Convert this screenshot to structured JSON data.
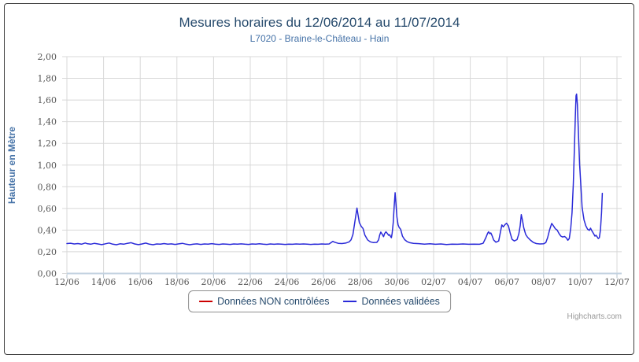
{
  "chart": {
    "credits": "Highcharts.com"
  },
  "colors": {
    "title": "#274b6d",
    "subtitle": "#4572a7",
    "axis_title": "#4572a7",
    "tick_label": "#555555",
    "grid": "#d8d8d8",
    "axis_line": "#c3d2e0",
    "tick_mark": "#b3bfca",
    "frame_border": "#3f3f3f",
    "credits": "#999999",
    "series_red": "#cc0000",
    "series_blue": "#2a2ad8"
  },
  "legend": {
    "items": [
      {
        "label": "Données NON contrôlées",
        "color": "#cc0000"
      },
      {
        "label": "Données validées",
        "color": "#2a2ad8"
      }
    ]
  },
  "chart_data": {
    "type": "line",
    "title": "Mesures horaires du 12/06/2014 au 11/07/2014",
    "subtitle": "L7020 - Braine-le-Château - Hain",
    "xlabel": "",
    "ylabel": "Hauteur en Mètre",
    "ylim": [
      0,
      2
    ],
    "y_tick_step": 0.2,
    "y_tick_labels": [
      "0,00",
      "0,20",
      "0,40",
      "0,60",
      "0,80",
      "1,00",
      "1,20",
      "1,40",
      "1,60",
      "1,80",
      "2,00"
    ],
    "x_tick_labels": [
      "12/06",
      "14/06",
      "16/06",
      "18/06",
      "20/06",
      "22/06",
      "24/06",
      "26/06",
      "28/06",
      "30/06",
      "02/07",
      "04/07",
      "06/07",
      "08/07",
      "10/07",
      "12/07"
    ],
    "x_unit": "days since 12/06/2014 00:00",
    "x_range_days": [
      0,
      30
    ],
    "grid": true,
    "legend_position": "bottom",
    "series": [
      {
        "name": "Données NON contrôlées",
        "color": "#cc0000",
        "points": []
      },
      {
        "name": "Données validées",
        "color": "#2a2ad8",
        "points": [
          [
            0.0,
            0.276
          ],
          [
            0.2,
            0.279
          ],
          [
            0.4,
            0.272
          ],
          [
            0.6,
            0.276
          ],
          [
            0.8,
            0.27
          ],
          [
            1.0,
            0.281
          ],
          [
            1.1,
            0.275
          ],
          [
            1.3,
            0.27
          ],
          [
            1.5,
            0.278
          ],
          [
            1.7,
            0.272
          ],
          [
            1.9,
            0.266
          ],
          [
            2.1,
            0.274
          ],
          [
            2.3,
            0.281
          ],
          [
            2.5,
            0.27
          ],
          [
            2.7,
            0.265
          ],
          [
            2.9,
            0.274
          ],
          [
            3.1,
            0.27
          ],
          [
            3.3,
            0.278
          ],
          [
            3.5,
            0.284
          ],
          [
            3.7,
            0.272
          ],
          [
            3.9,
            0.266
          ],
          [
            4.1,
            0.272
          ],
          [
            4.3,
            0.28
          ],
          [
            4.5,
            0.27
          ],
          [
            4.7,
            0.265
          ],
          [
            4.9,
            0.272
          ],
          [
            5.1,
            0.27
          ],
          [
            5.3,
            0.276
          ],
          [
            5.5,
            0.27
          ],
          [
            5.7,
            0.273
          ],
          [
            5.9,
            0.268
          ],
          [
            6.1,
            0.273
          ],
          [
            6.3,
            0.278
          ],
          [
            6.5,
            0.27
          ],
          [
            6.7,
            0.265
          ],
          [
            6.9,
            0.271
          ],
          [
            7.1,
            0.273
          ],
          [
            7.3,
            0.268
          ],
          [
            7.5,
            0.272
          ],
          [
            7.7,
            0.27
          ],
          [
            7.9,
            0.275
          ],
          [
            8.1,
            0.27
          ],
          [
            8.3,
            0.268
          ],
          [
            8.5,
            0.272
          ],
          [
            8.7,
            0.27
          ],
          [
            8.9,
            0.268
          ],
          [
            9.1,
            0.272
          ],
          [
            9.3,
            0.27
          ],
          [
            9.5,
            0.273
          ],
          [
            9.7,
            0.27
          ],
          [
            9.9,
            0.268
          ],
          [
            10.1,
            0.272
          ],
          [
            10.3,
            0.27
          ],
          [
            10.5,
            0.274
          ],
          [
            10.7,
            0.27
          ],
          [
            10.9,
            0.268
          ],
          [
            11.1,
            0.272
          ],
          [
            11.3,
            0.269
          ],
          [
            11.5,
            0.272
          ],
          [
            11.7,
            0.27
          ],
          [
            11.9,
            0.268
          ],
          [
            12.1,
            0.271
          ],
          [
            12.3,
            0.269
          ],
          [
            12.5,
            0.272
          ],
          [
            12.7,
            0.27
          ],
          [
            12.9,
            0.272
          ],
          [
            13.1,
            0.27
          ],
          [
            13.3,
            0.268
          ],
          [
            13.5,
            0.271
          ],
          [
            13.7,
            0.269
          ],
          [
            13.9,
            0.272
          ],
          [
            14.1,
            0.27
          ],
          [
            14.3,
            0.272
          ],
          [
            14.5,
            0.296
          ],
          [
            14.6,
            0.288
          ],
          [
            14.8,
            0.278
          ],
          [
            15.0,
            0.276
          ],
          [
            15.2,
            0.28
          ],
          [
            15.4,
            0.292
          ],
          [
            15.5,
            0.31
          ],
          [
            15.6,
            0.36
          ],
          [
            15.7,
            0.47
          ],
          [
            15.78,
            0.56
          ],
          [
            15.82,
            0.603
          ],
          [
            15.88,
            0.54
          ],
          [
            15.95,
            0.47
          ],
          [
            16.05,
            0.435
          ],
          [
            16.15,
            0.415
          ],
          [
            16.25,
            0.355
          ],
          [
            16.4,
            0.31
          ],
          [
            16.55,
            0.292
          ],
          [
            16.7,
            0.285
          ],
          [
            16.9,
            0.287
          ],
          [
            17.0,
            0.31
          ],
          [
            17.06,
            0.355
          ],
          [
            17.12,
            0.382
          ],
          [
            17.2,
            0.36
          ],
          [
            17.27,
            0.34
          ],
          [
            17.33,
            0.368
          ],
          [
            17.4,
            0.385
          ],
          [
            17.48,
            0.368
          ],
          [
            17.55,
            0.352
          ],
          [
            17.6,
            0.358
          ],
          [
            17.66,
            0.338
          ],
          [
            17.7,
            0.33
          ],
          [
            17.74,
            0.37
          ],
          [
            17.8,
            0.47
          ],
          [
            17.85,
            0.62
          ],
          [
            17.9,
            0.745
          ],
          [
            17.95,
            0.64
          ],
          [
            18.0,
            0.52
          ],
          [
            18.06,
            0.45
          ],
          [
            18.12,
            0.425
          ],
          [
            18.2,
            0.408
          ],
          [
            18.3,
            0.345
          ],
          [
            18.42,
            0.312
          ],
          [
            18.55,
            0.295
          ],
          [
            18.7,
            0.284
          ],
          [
            18.9,
            0.278
          ],
          [
            19.2,
            0.275
          ],
          [
            19.5,
            0.271
          ],
          [
            19.8,
            0.274
          ],
          [
            20.1,
            0.269
          ],
          [
            20.4,
            0.272
          ],
          [
            20.7,
            0.267
          ],
          [
            21.0,
            0.271
          ],
          [
            21.3,
            0.269
          ],
          [
            21.6,
            0.272
          ],
          [
            21.9,
            0.269
          ],
          [
            22.2,
            0.271
          ],
          [
            22.5,
            0.269
          ],
          [
            22.7,
            0.278
          ],
          [
            22.85,
            0.33
          ],
          [
            22.95,
            0.372
          ],
          [
            23.0,
            0.384
          ],
          [
            23.06,
            0.368
          ],
          [
            23.12,
            0.374
          ],
          [
            23.18,
            0.352
          ],
          [
            23.28,
            0.308
          ],
          [
            23.4,
            0.288
          ],
          [
            23.55,
            0.3
          ],
          [
            23.65,
            0.385
          ],
          [
            23.72,
            0.448
          ],
          [
            23.8,
            0.43
          ],
          [
            23.9,
            0.452
          ],
          [
            23.98,
            0.463
          ],
          [
            24.08,
            0.438
          ],
          [
            24.18,
            0.37
          ],
          [
            24.28,
            0.315
          ],
          [
            24.4,
            0.3
          ],
          [
            24.55,
            0.312
          ],
          [
            24.65,
            0.365
          ],
          [
            24.72,
            0.44
          ],
          [
            24.78,
            0.542
          ],
          [
            24.84,
            0.495
          ],
          [
            24.92,
            0.42
          ],
          [
            25.02,
            0.36
          ],
          [
            25.12,
            0.335
          ],
          [
            25.28,
            0.308
          ],
          [
            25.44,
            0.286
          ],
          [
            25.6,
            0.276
          ],
          [
            25.8,
            0.272
          ],
          [
            26.0,
            0.274
          ],
          [
            26.12,
            0.285
          ],
          [
            26.22,
            0.33
          ],
          [
            26.32,
            0.4
          ],
          [
            26.44,
            0.462
          ],
          [
            26.54,
            0.438
          ],
          [
            26.64,
            0.412
          ],
          [
            26.74,
            0.4
          ],
          [
            26.84,
            0.368
          ],
          [
            26.94,
            0.345
          ],
          [
            27.04,
            0.336
          ],
          [
            27.14,
            0.342
          ],
          [
            27.24,
            0.328
          ],
          [
            27.32,
            0.306
          ],
          [
            27.4,
            0.322
          ],
          [
            27.48,
            0.42
          ],
          [
            27.55,
            0.56
          ],
          [
            27.62,
            0.82
          ],
          [
            27.68,
            1.15
          ],
          [
            27.73,
            1.45
          ],
          [
            27.77,
            1.64
          ],
          [
            27.8,
            1.655
          ],
          [
            27.84,
            1.56
          ],
          [
            27.9,
            1.28
          ],
          [
            27.96,
            1.01
          ],
          [
            28.02,
            0.84
          ],
          [
            28.1,
            0.61
          ],
          [
            28.2,
            0.495
          ],
          [
            28.3,
            0.44
          ],
          [
            28.4,
            0.408
          ],
          [
            28.5,
            0.398
          ],
          [
            28.56,
            0.418
          ],
          [
            28.62,
            0.398
          ],
          [
            28.72,
            0.368
          ],
          [
            28.8,
            0.345
          ],
          [
            28.86,
            0.352
          ],
          [
            28.92,
            0.338
          ],
          [
            28.98,
            0.322
          ],
          [
            29.04,
            0.33
          ],
          [
            29.1,
            0.4
          ],
          [
            29.16,
            0.56
          ],
          [
            29.2,
            0.74
          ]
        ]
      }
    ]
  }
}
